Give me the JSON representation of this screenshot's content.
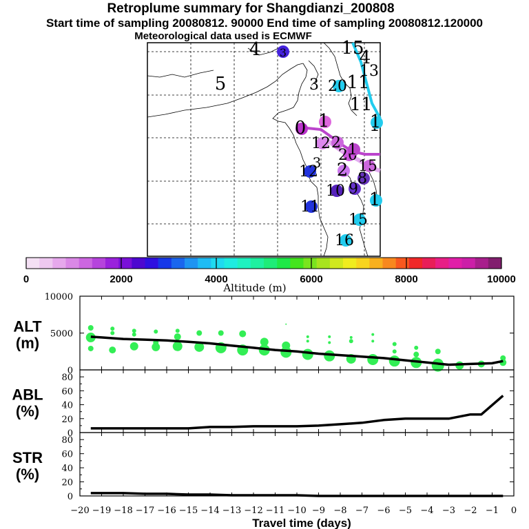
{
  "header": {
    "title": "Retroplume summary for Shangdianzi_200808",
    "sampling_line": "Start time of sampling 20080812. 90000     End time of sampling 20080812.120000",
    "met_line": "Meteorological data used is ECMWF"
  },
  "map": {
    "plume_labels": [
      {
        "text": "4",
        "color": "#000000",
        "dot": "none"
      },
      {
        "text": "3",
        "color": "#000000",
        "dot": "#4422dd"
      },
      {
        "text": "5",
        "color": "#000000",
        "dot": "none"
      },
      {
        "text": "3",
        "color": "#000000",
        "dot": "none"
      },
      {
        "text": "20",
        "color": "#000000",
        "dot": "#22ccee"
      },
      {
        "text": "15",
        "color": "#000000",
        "dot": "none"
      },
      {
        "text": "4",
        "color": "#000000",
        "dot": "none"
      },
      {
        "text": "13",
        "color": "#000000",
        "dot": "none"
      },
      {
        "text": "11",
        "color": "#000000",
        "dot": "none"
      },
      {
        "text": "11",
        "color": "#000000",
        "dot": "none"
      },
      {
        "text": "1",
        "color": "#000000",
        "dot": "none"
      },
      {
        "text": "0",
        "color": "#000000",
        "dot": "#bb33cc"
      },
      {
        "text": "1",
        "color": "#000000",
        "dot": "#dd66dd"
      },
      {
        "text": "12",
        "color": "#000000",
        "dot": "#dd88ee"
      },
      {
        "text": "2",
        "color": "#000000",
        "dot": "#cc66dd"
      },
      {
        "text": "20",
        "color": "#000000",
        "dot": "#cc55dd"
      },
      {
        "text": "1",
        "color": "#000000",
        "dot": "#bb44cc"
      },
      {
        "text": "3",
        "color": "#000000",
        "dot": "none"
      },
      {
        "text": "12",
        "color": "#000000",
        "dot": "#2233dd"
      },
      {
        "text": "2",
        "color": "#000000",
        "dot": "#cc77ee"
      },
      {
        "text": "15",
        "color": "#000000",
        "dot": "#cc66dd"
      },
      {
        "text": "8",
        "color": "#000000",
        "dot": "#6633bb"
      },
      {
        "text": "10",
        "color": "#000000",
        "dot": "#5522bb"
      },
      {
        "text": "9",
        "color": "#000000",
        "dot": "#6633cc"
      },
      {
        "text": "1",
        "color": "#000000",
        "dot": "#22ccee"
      },
      {
        "text": "11",
        "color": "#000000",
        "dot": "#2233dd"
      },
      {
        "text": "15",
        "color": "#000000",
        "dot": "#22ccee"
      },
      {
        "text": "16",
        "color": "#000000",
        "dot": "#22ccee"
      },
      {
        "text": "1",
        "color": "#000000",
        "dot": "#22ccee"
      }
    ]
  },
  "colorbar": {
    "ticks": [
      "0",
      "2000",
      "4000",
      "6000",
      "8000",
      "10000"
    ],
    "label": "Altitude (m)",
    "colors": [
      "#f4e0f4",
      "#eec8f0",
      "#e6a8ec",
      "#da88e6",
      "#cc66e0",
      "#b644dc",
      "#9a22dc",
      "#7a10d8",
      "#4d08d0",
      "#2e10e0",
      "#1638e8",
      "#1a66ee",
      "#1e94f2",
      "#1ebcf4",
      "#1edaf0",
      "#1eece0",
      "#1ef2c0",
      "#1ef0a0",
      "#1eec78",
      "#1ee848",
      "#44e41e",
      "#7ae41e",
      "#a8e41e",
      "#d0e81e",
      "#f0ec1e",
      "#f8d41e",
      "#f8b01e",
      "#f8881e",
      "#f8581e",
      "#f02828",
      "#e81e58",
      "#e81e86",
      "#e01ea8",
      "#cc1ea8",
      "#a81e8c",
      "#821e6e"
    ]
  },
  "y_panel_labels": {
    "alt": [
      "ALT",
      "(m)"
    ],
    "abl": [
      "ABL",
      "(%)"
    ],
    "str": [
      "STR",
      "(%)"
    ]
  },
  "chart_data": [
    {
      "type": "line",
      "name": "ALT",
      "ylabel": "ALT (m)",
      "ylim": [
        0,
        10000
      ],
      "yticks": [
        "10000",
        "5000",
        "0"
      ],
      "x": [
        -19.5,
        -19,
        -18,
        -17,
        -16,
        -15,
        -14,
        -13,
        -12,
        -11,
        -10,
        -9,
        -8,
        -7,
        -6,
        -5,
        -4,
        -3,
        -2,
        -1,
        -0.5
      ],
      "values": [
        4500,
        4400,
        4200,
        4100,
        4000,
        3800,
        3600,
        3300,
        3000,
        2700,
        2500,
        2200,
        2000,
        1800,
        1600,
        1300,
        1000,
        700,
        800,
        900,
        1200
      ],
      "clusters": [
        {
          "x": -19.5,
          "alts": [
            5700,
            4400,
            2900
          ],
          "sizes": [
            4,
            7,
            4
          ]
        },
        {
          "x": -18.5,
          "alts": [
            5600,
            5000,
            2700
          ],
          "sizes": [
            3,
            3,
            5
          ]
        },
        {
          "x": -17.5,
          "alts": [
            5300,
            4800,
            3200
          ],
          "sizes": [
            3,
            3,
            6
          ]
        },
        {
          "x": -16.5,
          "alts": [
            5200,
            3700,
            3100
          ],
          "sizes": [
            3,
            4,
            6
          ]
        },
        {
          "x": -15.5,
          "alts": [
            5300,
            4500,
            3200
          ],
          "sizes": [
            3,
            5,
            7
          ]
        },
        {
          "x": -14.5,
          "alts": [
            5000,
            3100
          ],
          "sizes": [
            4,
            7
          ]
        },
        {
          "x": -13.5,
          "alts": [
            5000,
            3000
          ],
          "sizes": [
            4,
            8
          ]
        },
        {
          "x": -12.5,
          "alts": [
            4900,
            2700
          ],
          "sizes": [
            5,
            8
          ]
        },
        {
          "x": -11.5,
          "alts": [
            3800,
            2700
          ],
          "sizes": [
            6,
            8
          ]
        },
        {
          "x": -10.5,
          "alts": [
            6200,
            3300,
            2400
          ],
          "sizes": [
            1,
            6,
            8
          ]
        },
        {
          "x": -9.5,
          "alts": [
            4500,
            3900,
            2100
          ],
          "sizes": [
            2,
            2,
            8
          ]
        },
        {
          "x": -8.5,
          "alts": [
            4500,
            3700,
            1900
          ],
          "sizes": [
            2,
            2,
            8
          ]
        },
        {
          "x": -7.5,
          "alts": [
            4400,
            3900,
            1500
          ],
          "sizes": [
            2,
            3,
            7
          ]
        },
        {
          "x": -6.5,
          "alts": [
            4800,
            3900,
            1400
          ],
          "sizes": [
            2,
            2,
            8
          ]
        },
        {
          "x": -5.5,
          "alts": [
            3500,
            2500,
            1200
          ],
          "sizes": [
            3,
            3,
            8
          ]
        },
        {
          "x": -4.5,
          "alts": [
            3000,
            2100,
            1000
          ],
          "sizes": [
            3,
            4,
            8
          ]
        },
        {
          "x": -3.5,
          "alts": [
            2500,
            800,
            600
          ],
          "sizes": [
            4,
            8,
            9
          ]
        },
        {
          "x": -2.5,
          "alts": [
            600
          ],
          "sizes": [
            6
          ]
        },
        {
          "x": -1.5,
          "alts": [
            800
          ],
          "sizes": [
            5
          ]
        },
        {
          "x": -0.5,
          "alts": [
            1600,
            1000
          ],
          "sizes": [
            4,
            5
          ]
        }
      ],
      "point_color": "#33ee55"
    },
    {
      "type": "line",
      "name": "ABL",
      "ylabel": "ABL (%)",
      "ylim": [
        0,
        90
      ],
      "yticks": [
        "80",
        "60",
        "40",
        "20",
        "0"
      ],
      "x": [
        -19.5,
        -18,
        -17,
        -16,
        -15,
        -14,
        -13,
        -12,
        -11,
        -10,
        -9,
        -8,
        -7,
        -6,
        -5,
        -4,
        -3,
        -2,
        -1.5,
        -0.5
      ],
      "values": [
        6,
        6,
        6,
        6,
        6,
        8,
        8,
        9,
        9,
        9,
        10,
        12,
        14,
        18,
        20,
        20,
        20,
        26,
        26,
        53
      ]
    },
    {
      "type": "line",
      "name": "STR",
      "ylabel": "STR (%)",
      "ylim": [
        0,
        90
      ],
      "yticks": [
        "80",
        "60",
        "40",
        "20",
        "0"
      ],
      "x": [
        -19.5,
        -19,
        -18,
        -17,
        -16,
        -15,
        -14,
        -13,
        -12,
        -11,
        -10,
        -9,
        -8,
        -7,
        -6,
        -5,
        -4,
        -3,
        -2,
        -1,
        -0.5
      ],
      "values": [
        4,
        4,
        4,
        3,
        3,
        2,
        2,
        1,
        1,
        1,
        1,
        0,
        0,
        0,
        0,
        0,
        0,
        0,
        0,
        0,
        0
      ]
    }
  ],
  "x_axis": {
    "label": "Travel time (days)",
    "ticks": [
      "−20",
      "−19",
      "−18",
      "−17",
      "−16",
      "−15",
      "−14",
      "−13",
      "−12",
      "−11",
      "−10",
      "−9",
      "−8",
      "−7",
      "−6",
      "−5",
      "−4",
      "−3",
      "−2",
      "−1",
      "0"
    ]
  }
}
